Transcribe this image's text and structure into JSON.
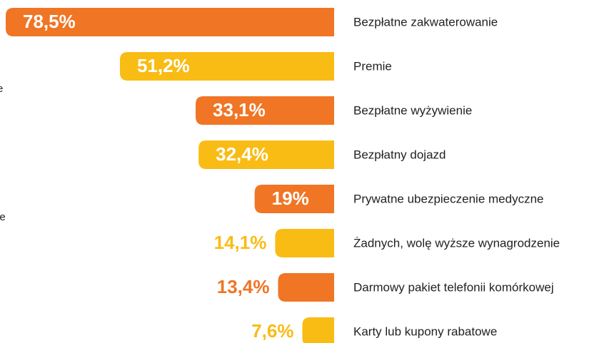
{
  "chart_data": {
    "type": "bar",
    "categories": [
      "Bezpłatne zakwaterowanie",
      "Premie",
      "Bezpłatne wyżywienie",
      "Bezpłatny dojazd",
      "Prywatne ubezpieczenie medyczne",
      "Żadnych, wolę wyższe wynagrodzenie",
      "Darmowy pakiet telefonii komórkowej",
      "Karty lub kupony rabatowe"
    ],
    "values": [
      78.5,
      51.2,
      33.1,
      32.4,
      19,
      14.1,
      13.4,
      7.6
    ],
    "value_labels": [
      "78,5%",
      "51,2%",
      "33,1%",
      "32,4%",
      "19%",
      "14,1%",
      "13,4%",
      "7,6%"
    ],
    "colors": [
      "#f07524",
      "#f9bc15",
      "#f07524",
      "#f9bc15",
      "#f07524",
      "#f9bc15",
      "#f07524",
      "#f9bc15"
    ],
    "annotations": [
      "e",
      "ie"
    ]
  }
}
